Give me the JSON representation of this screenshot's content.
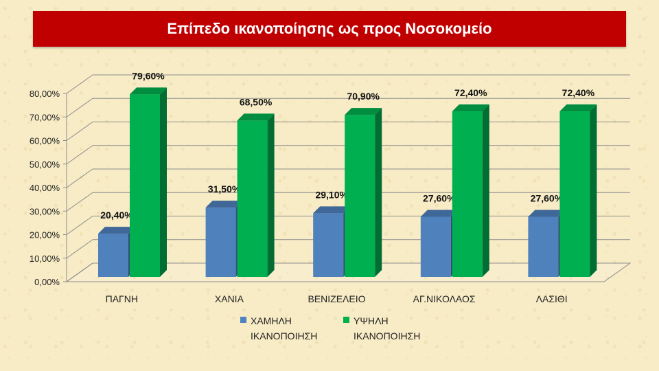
{
  "title": "Επίπεδο ικανοποίησης ως προς Νοσοκομείο",
  "chart_data": {
    "type": "bar",
    "categories": [
      "ΠΑΓΝΗ",
      "ΧΑΝΙΑ",
      "ΒΕΝΙΖΕΛΕΙΟ",
      "ΑΓ.ΝΙΚΟΛΑΟΣ",
      "ΛΑΣΙΘΙ"
    ],
    "series": [
      {
        "name": "ΧΑΜΗΛΗ ΙΚΑΝΟΠΟΙΗΣΗ",
        "values": [
          20.4,
          31.5,
          29.1,
          27.6,
          27.6
        ],
        "labels": [
          "20,40%",
          "31,50%",
          "29,10%",
          "27,60%",
          "27,60%"
        ],
        "color": "#4f81bd"
      },
      {
        "name": "ΥΨΗΛΗ ΙΚΑΝΟΠΟΙΗΣΗ",
        "values": [
          79.6,
          68.5,
          70.9,
          72.4,
          72.4
        ],
        "labels": [
          "79,60%",
          "68,50%",
          "70,90%",
          "72,40%",
          "72,40%"
        ],
        "color": "#00b050"
      }
    ],
    "y_ticks": [
      "0,00%",
      "10,00%",
      "20,00%",
      "30,00%",
      "40,00%",
      "50,00%",
      "60,00%",
      "70,00%",
      "80,00%"
    ],
    "ylim": [
      0,
      80
    ],
    "grid": true,
    "legend_position": "bottom",
    "style": "3d-column"
  }
}
